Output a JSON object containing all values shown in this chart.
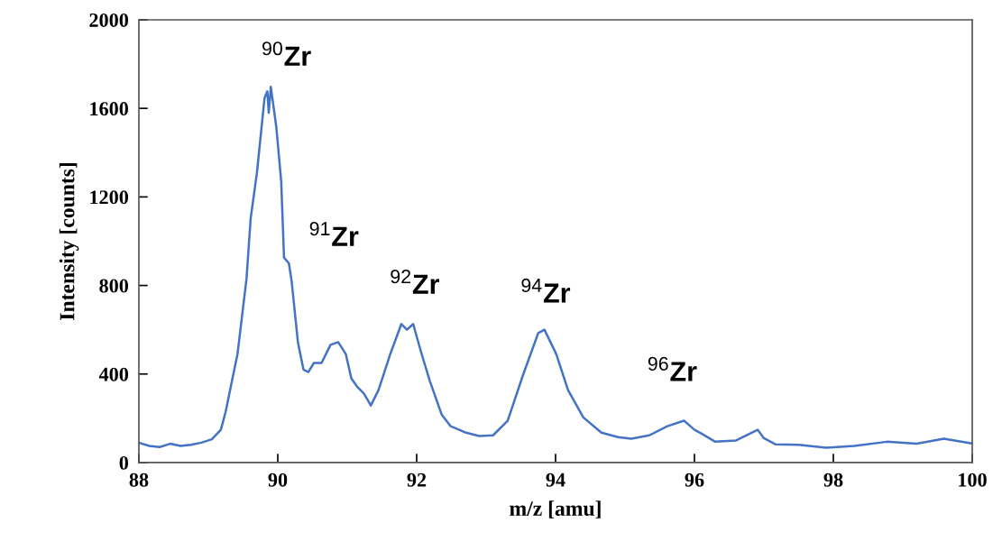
{
  "chart_data": {
    "type": "line",
    "xlabel": "m/z [amu]",
    "ylabel": "Intensity [counts]",
    "xlim": [
      88,
      100
    ],
    "xticks": [
      88,
      90,
      92,
      94,
      96,
      98,
      100
    ],
    "ylim": [
      0,
      2000
    ],
    "yticks": [
      0,
      400,
      800,
      1200,
      1600,
      2000
    ],
    "grid": false,
    "legend": false,
    "marker": "none",
    "line_style": "solid",
    "series": [
      {
        "color": "#4472c4",
        "x": [
          88.0,
          88.15,
          88.3,
          88.45,
          88.6,
          88.75,
          88.9,
          89.05,
          89.18,
          89.25,
          89.33,
          89.42,
          89.55,
          89.61,
          89.7,
          89.81,
          89.85,
          89.87,
          89.9,
          89.98,
          90.05,
          90.09,
          90.16,
          90.2,
          90.29,
          90.37,
          90.44,
          90.52,
          90.63,
          90.76,
          90.87,
          90.98,
          91.06,
          91.15,
          91.24,
          91.34,
          91.45,
          91.62,
          91.78,
          91.86,
          91.95,
          92.06,
          92.19,
          92.36,
          92.49,
          92.71,
          92.9,
          93.1,
          93.31,
          93.53,
          93.75,
          93.84,
          94.01,
          94.18,
          94.4,
          94.66,
          94.9,
          95.09,
          95.35,
          95.61,
          95.85,
          96.0,
          96.08,
          96.3,
          96.6,
          96.91,
          97.0,
          97.17,
          97.5,
          97.9,
          98.3,
          98.77,
          99.2,
          99.59,
          99.98
        ],
        "values": [
          90,
          75,
          70,
          85,
          75,
          80,
          90,
          105,
          148,
          230,
          353,
          490,
          830,
          1104,
          1309,
          1648,
          1677,
          1580,
          1697,
          1513,
          1268,
          926,
          900,
          818,
          544,
          420,
          409,
          450,
          450,
          532,
          544,
          490,
          380,
          340,
          312,
          258,
          327,
          490,
          626,
          600,
          626,
          503,
          368,
          217,
          164,
          135,
          120,
          123,
          189,
          394,
          585,
          600,
          490,
          327,
          204,
          135,
          115,
          108,
          123,
          164,
          189,
          148,
          135,
          94,
          100,
          148,
          110,
          82,
          80,
          67,
          75,
          94,
          85,
          108,
          87
        ]
      }
    ],
    "annotations": [
      "$^{90}$Zr",
      "$^{91}$Zr",
      "$^{92}$Zr",
      "$^{94}$Zr",
      "$^{96}$Zr"
    ]
  }
}
